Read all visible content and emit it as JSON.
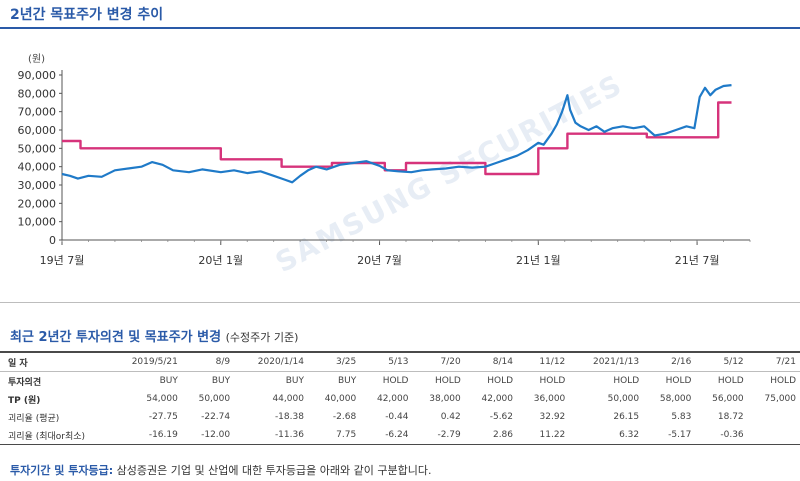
{
  "title": "2년간 목표주가 변경 추이",
  "watermark": "SAMSUNG SECURITIES",
  "chart_data": {
    "type": "line",
    "unit_label": "(원)",
    "ylim": [
      0,
      90000
    ],
    "yticks": [
      "90,000",
      "80,000",
      "70,000",
      "60,000",
      "50,000",
      "40,000",
      "30,000",
      "20,000",
      "10,000",
      "0"
    ],
    "ytick_values": [
      90000,
      80000,
      70000,
      60000,
      50000,
      40000,
      30000,
      20000,
      10000,
      0
    ],
    "x_range": [
      0,
      26
    ],
    "xticks": [
      {
        "label": "19년 7월",
        "x": 0
      },
      {
        "label": "20년 1월",
        "x": 6
      },
      {
        "label": "20년 7월",
        "x": 12
      },
      {
        "label": "21년 1월",
        "x": 18
      },
      {
        "label": "21년 7월",
        "x": 24
      }
    ],
    "colors": {
      "price": "#1f7ac8",
      "target": "#d6337b"
    },
    "series": [
      {
        "key": "price",
        "points": [
          [
            0,
            36000
          ],
          [
            0.3,
            35000
          ],
          [
            0.6,
            33500
          ],
          [
            1,
            35000
          ],
          [
            1.5,
            34500
          ],
          [
            2,
            38000
          ],
          [
            2.5,
            39000
          ],
          [
            3,
            40000
          ],
          [
            3.4,
            42500
          ],
          [
            3.8,
            41000
          ],
          [
            4.2,
            38000
          ],
          [
            4.8,
            37000
          ],
          [
            5.3,
            38500
          ],
          [
            6,
            37000
          ],
          [
            6.5,
            38000
          ],
          [
            7,
            36500
          ],
          [
            7.5,
            37500
          ],
          [
            8,
            35000
          ],
          [
            8.4,
            33000
          ],
          [
            8.7,
            31500
          ],
          [
            9,
            35000
          ],
          [
            9.3,
            38000
          ],
          [
            9.6,
            40000
          ],
          [
            10,
            38500
          ],
          [
            10.5,
            41000
          ],
          [
            11,
            42000
          ],
          [
            11.5,
            43000
          ],
          [
            12,
            40500
          ],
          [
            12.3,
            38000
          ],
          [
            12.7,
            37500
          ],
          [
            13.2,
            37000
          ],
          [
            13.6,
            38000
          ],
          [
            14,
            38500
          ],
          [
            14.5,
            39000
          ],
          [
            15,
            40000
          ],
          [
            15.5,
            39500
          ],
          [
            16,
            40000
          ],
          [
            16.4,
            42000
          ],
          [
            16.8,
            44000
          ],
          [
            17.2,
            46000
          ],
          [
            17.6,
            49000
          ],
          [
            18,
            53000
          ],
          [
            18.2,
            52000
          ],
          [
            18.5,
            58000
          ],
          [
            18.7,
            63000
          ],
          [
            18.9,
            70000
          ],
          [
            19.1,
            79000
          ],
          [
            19.2,
            71000
          ],
          [
            19.4,
            64000
          ],
          [
            19.6,
            62000
          ],
          [
            19.9,
            60000
          ],
          [
            20.2,
            62000
          ],
          [
            20.5,
            59000
          ],
          [
            20.8,
            61000
          ],
          [
            21.2,
            62000
          ],
          [
            21.6,
            61000
          ],
          [
            22,
            62000
          ],
          [
            22.4,
            57000
          ],
          [
            22.8,
            58000
          ],
          [
            23.2,
            60000
          ],
          [
            23.6,
            62000
          ],
          [
            23.9,
            61000
          ],
          [
            24.1,
            78000
          ],
          [
            24.3,
            83000
          ],
          [
            24.5,
            79000
          ],
          [
            24.7,
            82000
          ],
          [
            25,
            84000
          ],
          [
            25.3,
            84500
          ]
        ]
      },
      {
        "key": "target",
        "points": [
          [
            0,
            54000
          ],
          [
            0.7,
            54000
          ],
          [
            0.7,
            50000
          ],
          [
            6,
            50000
          ],
          [
            6,
            44000
          ],
          [
            8.3,
            44000
          ],
          [
            8.3,
            40000
          ],
          [
            10.2,
            40000
          ],
          [
            10.2,
            42000
          ],
          [
            12.2,
            42000
          ],
          [
            12.2,
            38000
          ],
          [
            13,
            38000
          ],
          [
            13,
            42000
          ],
          [
            16,
            42000
          ],
          [
            16,
            36000
          ],
          [
            18,
            36000
          ],
          [
            18,
            50000
          ],
          [
            19.1,
            50000
          ],
          [
            19.1,
            58000
          ],
          [
            22.1,
            58000
          ],
          [
            22.1,
            56000
          ],
          [
            24.8,
            56000
          ],
          [
            24.8,
            75000
          ],
          [
            25.3,
            75000
          ]
        ]
      }
    ]
  },
  "table": {
    "title": "최근 2년간 투자의견 및 목표주가 변경",
    "title_note": "(수정주가 기준)",
    "rows": [
      {
        "label": "일     자",
        "values": [
          "2019/5/21",
          "8/9",
          "2020/1/14",
          "3/25",
          "5/13",
          "7/20",
          "8/14",
          "11/12",
          "2021/1/13",
          "2/16",
          "5/12",
          "7/21"
        ]
      },
      {
        "label": "투자의견",
        "values": [
          "BUY",
          "BUY",
          "BUY",
          "BUY",
          "HOLD",
          "HOLD",
          "HOLD",
          "HOLD",
          "HOLD",
          "HOLD",
          "HOLD",
          "HOLD"
        ]
      },
      {
        "label": "TP (원)",
        "values": [
          "54,000",
          "50,000",
          "44,000",
          "40,000",
          "42,000",
          "38,000",
          "42,000",
          "36,000",
          "50,000",
          "58,000",
          "56,000",
          "75,000"
        ]
      },
      {
        "label": "괴리율 (평균)",
        "values": [
          "-27.75",
          "-22.74",
          "-18.38",
          "-2.68",
          "-0.44",
          "0.42",
          "-5.62",
          "32.92",
          "26.15",
          "5.83",
          "18.72",
          ""
        ]
      },
      {
        "label": "괴리율 (최대or최소)",
        "values": [
          "-16.19",
          "-12.00",
          "-11.36",
          "7.75",
          "-6.24",
          "-2.79",
          "2.86",
          "11.22",
          "6.32",
          "-5.17",
          "-0.36",
          ""
        ]
      }
    ]
  },
  "footer": {
    "label": "투자기간 및 투자등급:",
    "text": "삼성증권은 기업 및 산업에 대한 투자등급을 아래와 같이 구분합니다."
  }
}
